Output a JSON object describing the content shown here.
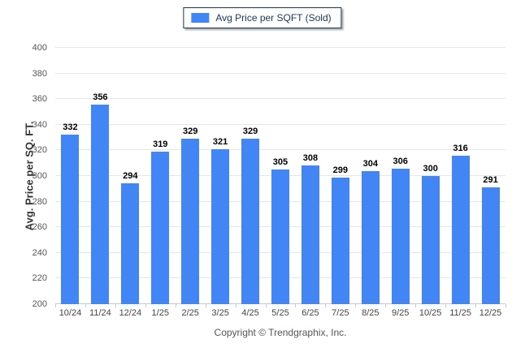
{
  "legend": {
    "label": "Avg Price per SQFT (Sold)",
    "swatch_color": "#4285F4"
  },
  "footer": {
    "copyright": "Copyright © Trendgraphix, Inc."
  },
  "colors": {
    "bar": "#4285F4",
    "legend_border": "#17375E",
    "gridline": "#e6e6e6",
    "axis_line": "#c9c9c9",
    "tick_text": "#555555",
    "value_text": "#000000"
  },
  "chart_data": {
    "type": "bar",
    "title": "",
    "categories": [
      "10/24",
      "11/24",
      "12/24",
      "1/25",
      "2/25",
      "3/25",
      "4/25",
      "5/25",
      "6/25",
      "7/25",
      "8/25",
      "9/25",
      "10/25",
      "11/25",
      "12/25"
    ],
    "series": [
      {
        "name": "Avg Price per SQFT (Sold)",
        "color": "#4285F4",
        "values": [
          332,
          356,
          294,
          319,
          329,
          321,
          329,
          305,
          308,
          299,
          304,
          306,
          300,
          316,
          291
        ]
      }
    ],
    "xlabel": "",
    "ylabel": "Avg. Price per SQ. FT.",
    "ylim": [
      200,
      400
    ],
    "ytick_step": 20,
    "grid": true,
    "value_labels": true,
    "legend_position": "top-center"
  }
}
